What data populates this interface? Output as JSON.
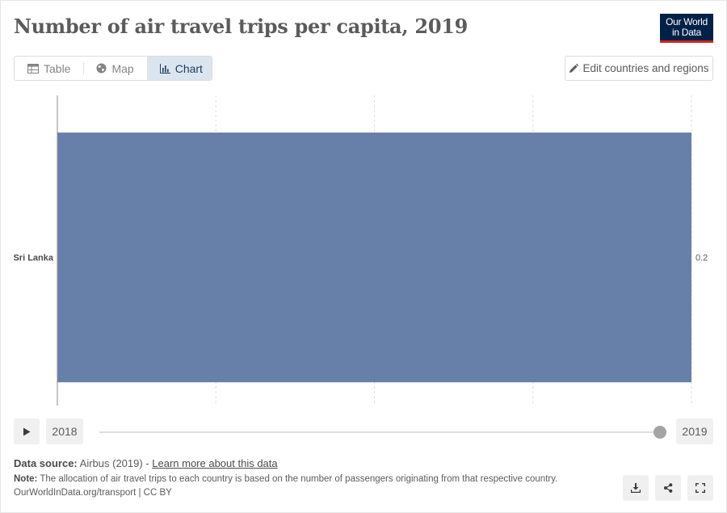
{
  "header": {
    "title": "Number of air travel trips per capita, 2019",
    "logo_line1": "Our World",
    "logo_line2": "in Data",
    "brand_color": "#002147",
    "brand_accent": "#ce261e"
  },
  "tabs": [
    {
      "label": "Table",
      "icon": "table-icon",
      "active": false
    },
    {
      "label": "Map",
      "icon": "globe-icon",
      "active": false
    },
    {
      "label": "Chart",
      "icon": "chart-icon",
      "active": true
    }
  ],
  "edit_button": {
    "label": "Edit countries and regions",
    "icon": "pencil-icon"
  },
  "chart_data": {
    "type": "bar",
    "orientation": "horizontal",
    "categories": [
      "Sri Lanka"
    ],
    "values": [
      0.2
    ],
    "value_labels": [
      "0.2"
    ],
    "bar_color": "#6780aa",
    "xlim": [
      0,
      0.2
    ],
    "x_gridlines": [
      0,
      0.05,
      0.1,
      0.15,
      0.2
    ],
    "grid": "vertical dashed",
    "title": "",
    "xlabel": "",
    "ylabel": ""
  },
  "timeline": {
    "start_year": "2018",
    "end_year": "2019",
    "selected_fraction": 1.0
  },
  "footer": {
    "source_label": "Data source:",
    "source_text": "Airbus (2019) - ",
    "source_link": "Learn more about this data",
    "note_label": "Note:",
    "note_text": "The allocation of air travel trips to each country is based on the number of passengers originating from that respective country.",
    "org_text": "OurWorldInData.org/transport | CC BY"
  },
  "actions": [
    {
      "name": "download-button",
      "icon": "download-icon"
    },
    {
      "name": "share-button",
      "icon": "share-icon"
    },
    {
      "name": "fullscreen-button",
      "icon": "fullscreen-icon"
    }
  ]
}
